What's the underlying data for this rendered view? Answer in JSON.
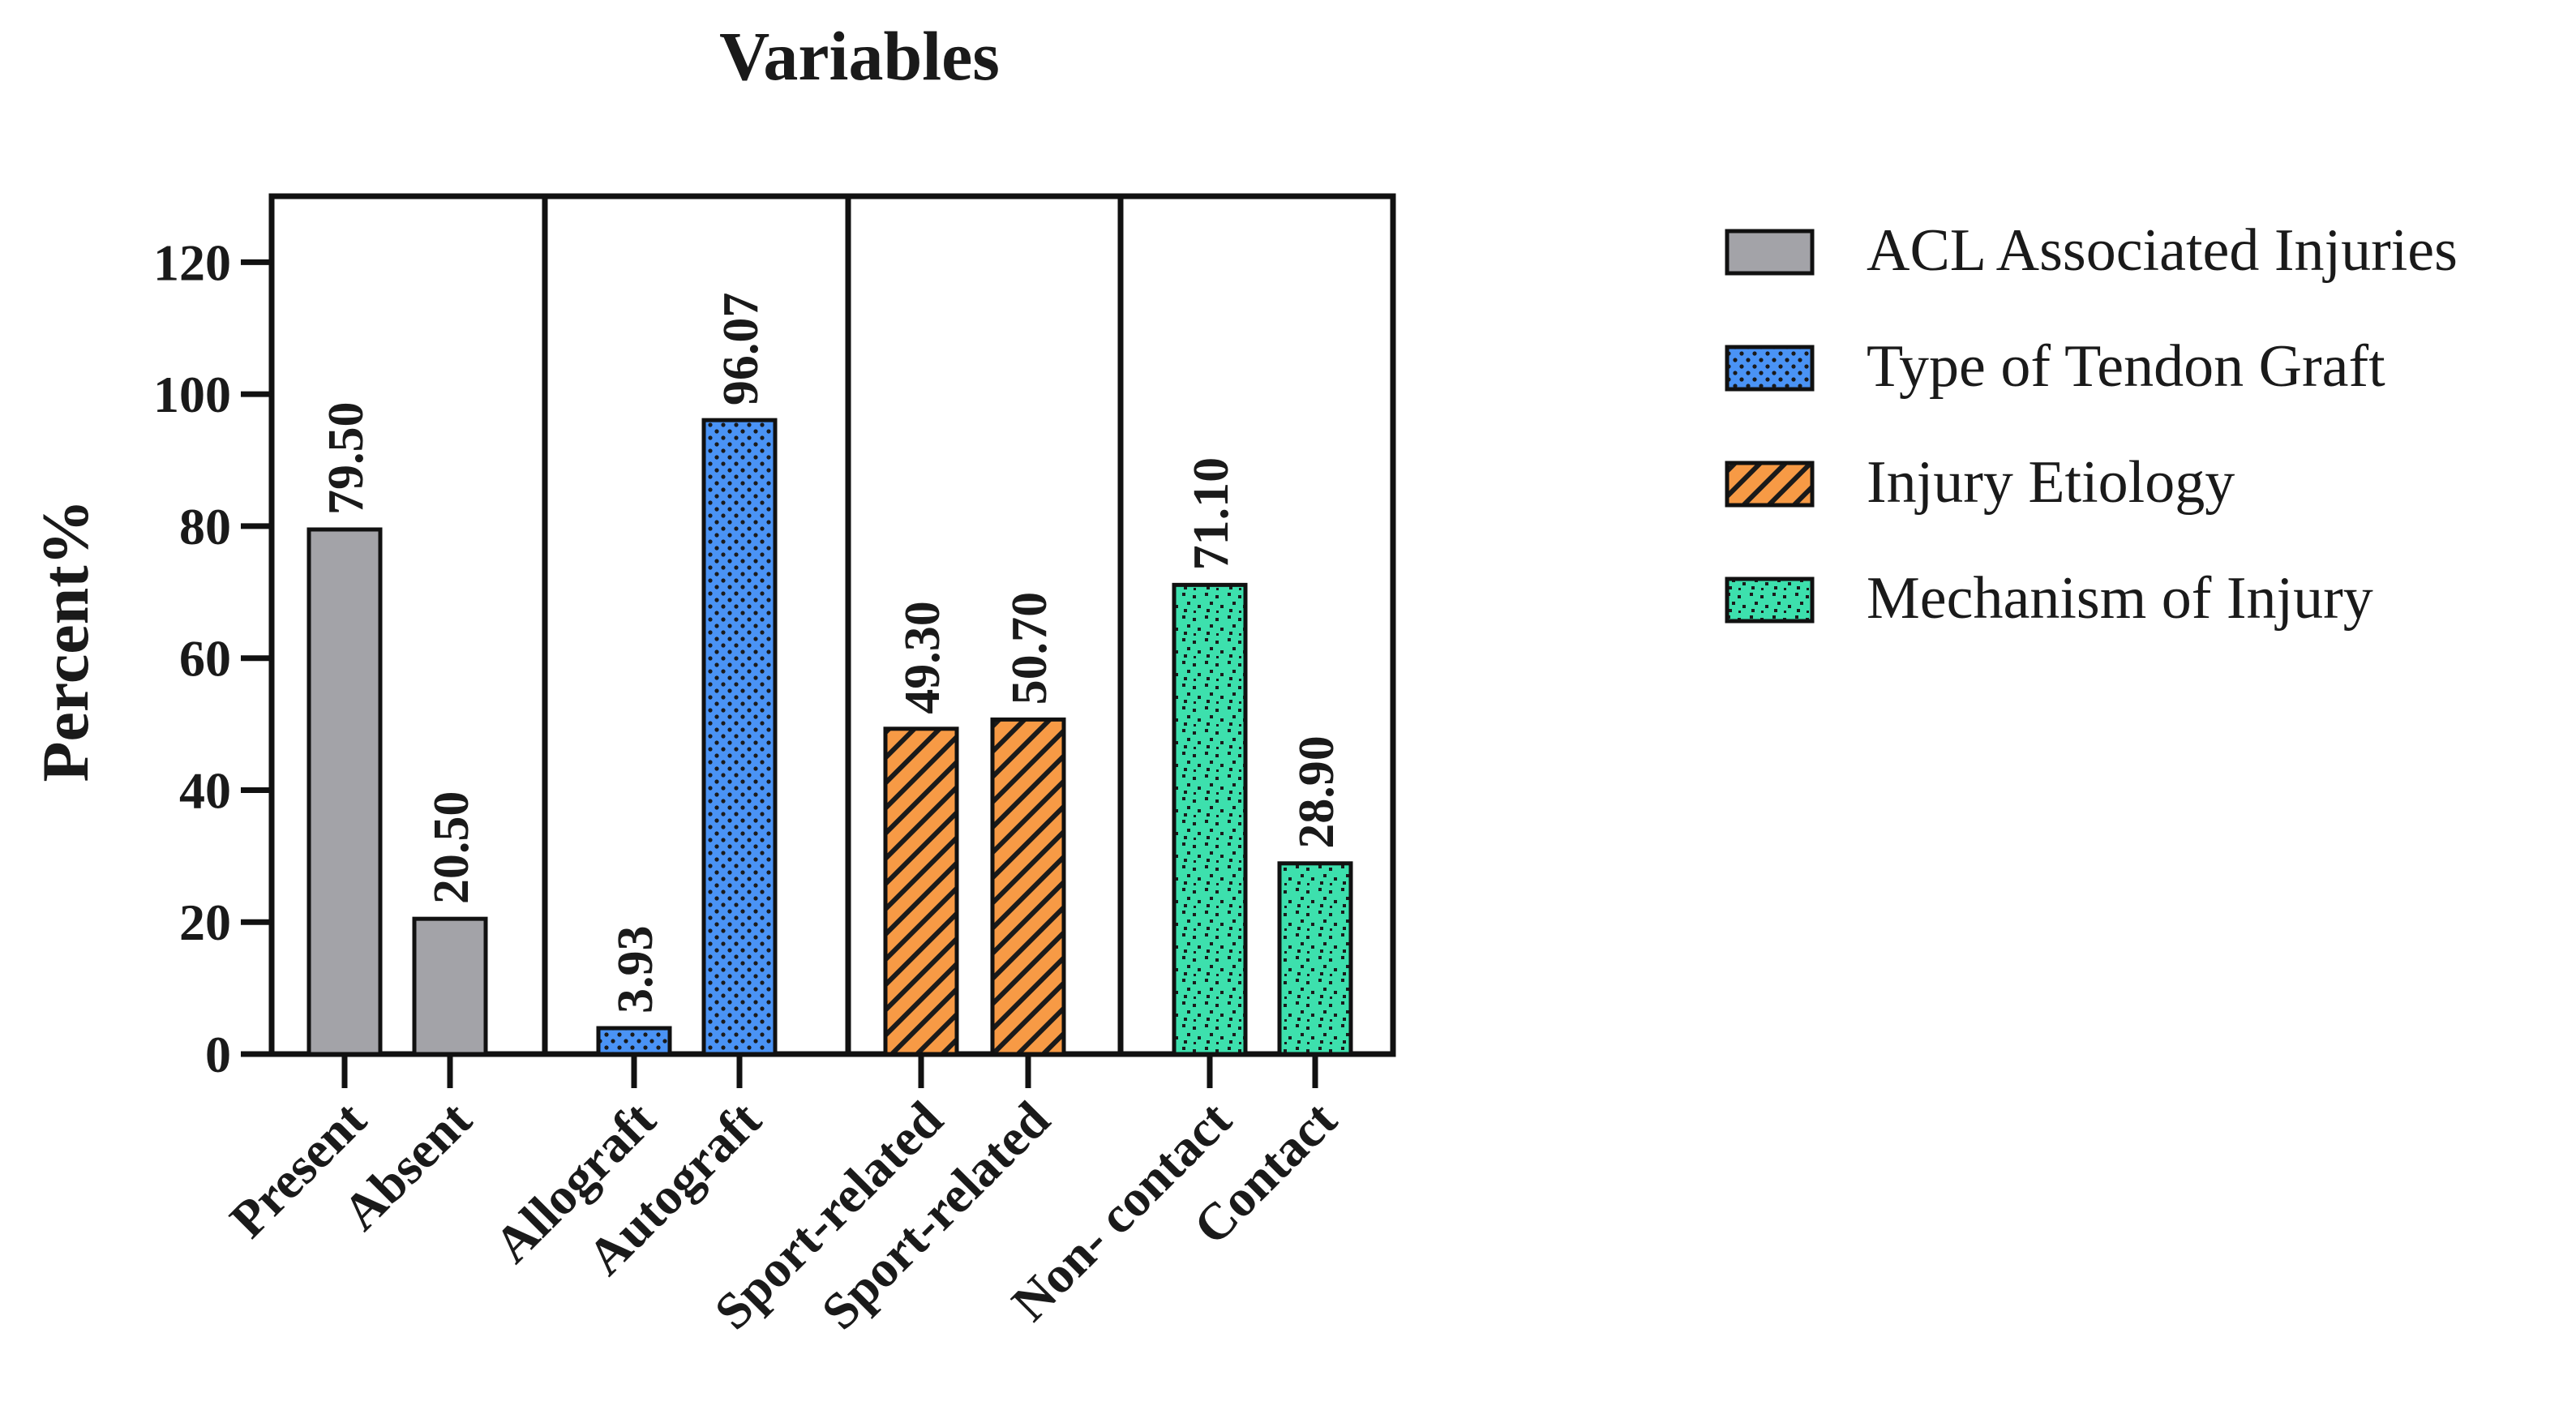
{
  "chart_data": {
    "type": "bar",
    "title": "Variables",
    "xlabel": "",
    "ylabel": "Percent%",
    "ylim": [
      0,
      130
    ],
    "yticks": [
      0,
      20,
      40,
      60,
      80,
      100,
      120
    ],
    "grid": false,
    "legend_position": "top-right",
    "groups": [
      {
        "name": "ACL Associated Injuries",
        "color": "#a3a3a8",
        "pattern": "solid",
        "categories": [
          "Present",
          "Absent"
        ],
        "values": [
          79.5,
          20.5
        ],
        "labels": [
          "79.50",
          "20.50"
        ]
      },
      {
        "name": "Type of Tendon Graft",
        "color": "#4a93f5",
        "pattern": "dots",
        "categories": [
          "Allograft",
          "Autograft"
        ],
        "values": [
          3.93,
          96.07
        ],
        "labels": [
          "3.93",
          "96.07"
        ]
      },
      {
        "name": "Injury Etiology",
        "color": "#f79a45",
        "pattern": "diagonal-stripes",
        "categories": [
          "Sport-related",
          "Sport-related"
        ],
        "values": [
          49.3,
          50.7
        ],
        "labels": [
          "49.30",
          "50.70"
        ]
      },
      {
        "name": "Mechanism of Injury",
        "color": "#3de0ad",
        "pattern": "scatter-dots",
        "categories": [
          "Non- contact",
          "Contact"
        ],
        "values": [
          71.1,
          28.9
        ],
        "labels": [
          "71.10",
          "28.90"
        ]
      }
    ]
  }
}
